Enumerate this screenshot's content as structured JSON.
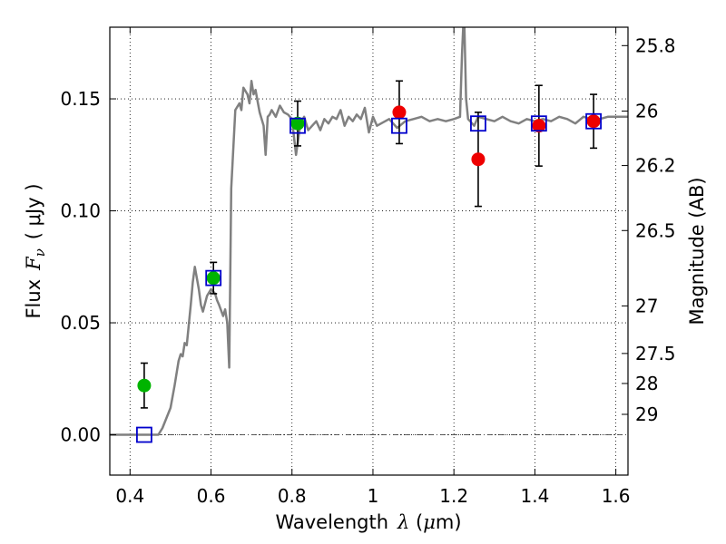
{
  "chart_data": {
    "type": "scatter",
    "xlabel": {
      "prefix": "Wavelength",
      "symbol": "λ",
      "unit_open": " (",
      "unit_mu": "μ",
      "unit_rest": "m)"
    },
    "ylabel": {
      "prefix": "Flux",
      "symbol": "F",
      "sub": "ν",
      "unit": "( μJy )"
    },
    "ylabel_right": "Magnitude (AB)",
    "xlim": [
      0.35,
      1.63
    ],
    "ylim": [
      -0.018,
      0.182
    ],
    "grid": true,
    "x_ticks": [
      {
        "value": 0.4,
        "label": "0.4"
      },
      {
        "value": 0.6,
        "label": "0.6"
      },
      {
        "value": 0.8,
        "label": "0.8"
      },
      {
        "value": 1.0,
        "label": "1"
      },
      {
        "value": 1.2,
        "label": "1.2"
      },
      {
        "value": 1.4,
        "label": "1.4"
      },
      {
        "value": 1.6,
        "label": "1.6"
      }
    ],
    "y_ticks": [
      {
        "value": 0.0,
        "label": "0.00"
      },
      {
        "value": 0.05,
        "label": "0.05"
      },
      {
        "value": 0.1,
        "label": "0.10"
      },
      {
        "value": 0.15,
        "label": "0.15"
      }
    ],
    "mag_ticks": [
      {
        "mag": 25.8,
        "label": "25.8"
      },
      {
        "mag": 26.0,
        "label": "26"
      },
      {
        "mag": 26.2,
        "label": "26.2"
      },
      {
        "mag": 26.5,
        "label": "26.5"
      },
      {
        "mag": 27.0,
        "label": "27"
      },
      {
        "mag": 27.5,
        "label": "27.5"
      },
      {
        "mag": 28.0,
        "label": "28"
      },
      {
        "mag": 29.0,
        "label": "29"
      }
    ],
    "zero_line": 0.0,
    "spectrum": {
      "color": "#808080",
      "x": [
        0.35,
        0.47,
        0.48,
        0.5,
        0.51,
        0.52,
        0.525,
        0.53,
        0.535,
        0.54,
        0.55,
        0.555,
        0.56,
        0.565,
        0.57,
        0.575,
        0.58,
        0.59,
        0.6,
        0.61,
        0.615,
        0.62,
        0.63,
        0.635,
        0.64,
        0.645,
        0.65,
        0.66,
        0.67,
        0.675,
        0.68,
        0.69,
        0.695,
        0.7,
        0.705,
        0.71,
        0.715,
        0.72,
        0.73,
        0.735,
        0.74,
        0.745,
        0.75,
        0.76,
        0.77,
        0.78,
        0.79,
        0.8,
        0.81,
        0.82,
        0.83,
        0.84,
        0.85,
        0.86,
        0.87,
        0.88,
        0.89,
        0.9,
        0.91,
        0.92,
        0.93,
        0.94,
        0.95,
        0.96,
        0.97,
        0.98,
        0.99,
        1.0,
        1.01,
        1.02,
        1.04,
        1.06,
        1.08,
        1.1,
        1.12,
        1.14,
        1.16,
        1.18,
        1.2,
        1.215,
        1.22,
        1.225,
        1.23,
        1.235,
        1.24,
        1.25,
        1.26,
        1.28,
        1.3,
        1.32,
        1.34,
        1.36,
        1.38,
        1.4,
        1.42,
        1.44,
        1.46,
        1.48,
        1.5,
        1.52,
        1.54,
        1.56,
        1.58,
        1.6,
        1.63
      ],
      "y": [
        0.0,
        0.0,
        0.003,
        0.012,
        0.022,
        0.033,
        0.036,
        0.035,
        0.041,
        0.04,
        0.058,
        0.068,
        0.075,
        0.07,
        0.065,
        0.058,
        0.055,
        0.062,
        0.065,
        0.063,
        0.06,
        0.058,
        0.053,
        0.056,
        0.05,
        0.03,
        0.11,
        0.145,
        0.148,
        0.145,
        0.155,
        0.152,
        0.148,
        0.158,
        0.152,
        0.154,
        0.149,
        0.144,
        0.138,
        0.125,
        0.142,
        0.143,
        0.145,
        0.142,
        0.147,
        0.144,
        0.143,
        0.141,
        0.125,
        0.138,
        0.142,
        0.136,
        0.138,
        0.14,
        0.136,
        0.141,
        0.139,
        0.142,
        0.141,
        0.145,
        0.138,
        0.142,
        0.14,
        0.143,
        0.141,
        0.146,
        0.135,
        0.142,
        0.138,
        0.139,
        0.141,
        0.137,
        0.14,
        0.141,
        0.142,
        0.14,
        0.141,
        0.14,
        0.141,
        0.142,
        0.17,
        0.19,
        0.15,
        0.141,
        0.14,
        0.138,
        0.142,
        0.141,
        0.14,
        0.142,
        0.14,
        0.139,
        0.141,
        0.14,
        0.141,
        0.14,
        0.142,
        0.141,
        0.139,
        0.142,
        0.141,
        0.141,
        0.142,
        0.142,
        0.142
      ]
    },
    "series": [
      {
        "marker": "circle",
        "color": "#00b400",
        "points": [
          {
            "x": 0.435,
            "y": 0.022,
            "err_lo": 0.01,
            "err_hi": 0.01
          },
          {
            "x": 0.606,
            "y": 0.07,
            "err_lo": 0.007,
            "err_hi": 0.007
          },
          {
            "x": 0.814,
            "y": 0.139,
            "err_lo": 0.01,
            "err_hi": 0.01
          }
        ]
      },
      {
        "marker": "circle",
        "color": "#ee0000",
        "points": [
          {
            "x": 1.065,
            "y": 0.144,
            "err_lo": 0.014,
            "err_hi": 0.014
          },
          {
            "x": 1.26,
            "y": 0.123,
            "err_lo": 0.021,
            "err_hi": 0.021
          },
          {
            "x": 1.41,
            "y": 0.138,
            "err_lo": 0.018,
            "err_hi": 0.018
          },
          {
            "x": 1.545,
            "y": 0.14,
            "err_lo": 0.012,
            "err_hi": 0.012
          }
        ]
      },
      {
        "marker": "square-open",
        "color": "#0000cc",
        "points": [
          {
            "x": 0.435,
            "y": 0.0
          },
          {
            "x": 0.606,
            "y": 0.07
          },
          {
            "x": 0.814,
            "y": 0.138
          },
          {
            "x": 1.065,
            "y": 0.138
          },
          {
            "x": 1.26,
            "y": 0.139
          },
          {
            "x": 1.41,
            "y": 0.139
          },
          {
            "x": 1.545,
            "y": 0.14
          }
        ]
      }
    ]
  }
}
